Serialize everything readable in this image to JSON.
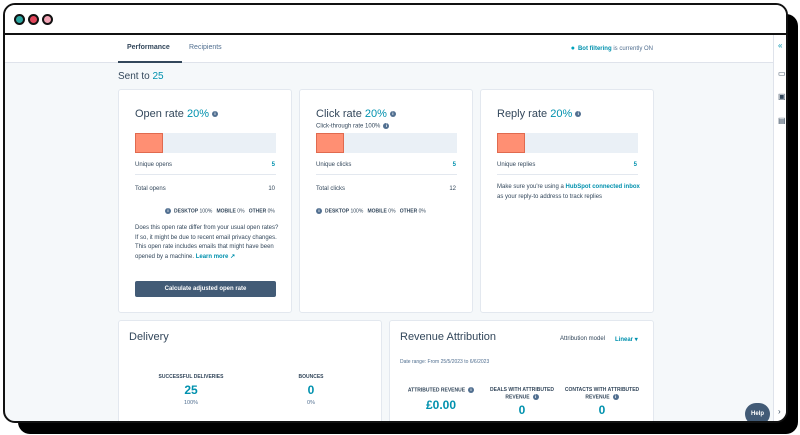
{
  "window": {
    "controls": [
      "close",
      "minimize",
      "maximize"
    ]
  },
  "tabs": [
    {
      "label": "Performance"
    },
    {
      "label": "Recipients"
    }
  ],
  "bot_filtering": {
    "link": "Bot filtering",
    "text": "is currently ON"
  },
  "sent": {
    "label": "Sent to",
    "count": "25"
  },
  "open_rate": {
    "title": "Open rate",
    "pct": "20%",
    "fill_fraction": 0.2,
    "unique_label": "Unique opens",
    "unique_value": "5",
    "total_label": "Total opens",
    "total_value": "10",
    "devices": {
      "desktop_label": "DESKTOP",
      "desktop_value": "100%",
      "mobile_label": "MOBILE",
      "mobile_value": "0%",
      "other_label": "OTHER",
      "other_value": "0%"
    },
    "note": "Does this open rate differ from your usual open rates? If so, it might be due to recent email privacy changes. This open rate includes emails that might have been opened by a machine.",
    "learn_more": "Learn more",
    "button": "Calculate adjusted open rate"
  },
  "click_rate": {
    "title": "Click rate",
    "pct": "20%",
    "fill_fraction": 0.2,
    "click_through": "Click-through rate 100%",
    "unique_label": "Unique clicks",
    "unique_value": "5",
    "total_label": "Total clicks",
    "total_value": "12",
    "devices": {
      "desktop_label": "DESKTOP",
      "desktop_value": "100%",
      "mobile_label": "MOBILE",
      "mobile_value": "0%",
      "other_label": "OTHER",
      "other_value": "0%"
    }
  },
  "reply_rate": {
    "title": "Reply rate",
    "pct": "20%",
    "fill_fraction": 0.2,
    "unique_label": "Unique replies",
    "unique_value": "5",
    "note_pre": "Make sure you're using a",
    "note_link": "HubSpot connected inbox",
    "note_post": "as your reply-to address to track replies"
  },
  "delivery": {
    "title": "Delivery",
    "successful_label": "SUCCESSFUL DELIVERIES",
    "successful_value": "25",
    "successful_pct": "100%",
    "bounces_label": "BOUNCES",
    "bounces_value": "0",
    "bounces_pct": "0%"
  },
  "revenue": {
    "title": "Revenue Attribution",
    "model_label": "Attribution model",
    "model_value": "Linear",
    "date_range": "Date range: From 25/5/2023 to 6/6/2023",
    "attributed_label": "ATTRIBUTED REVENUE",
    "attributed_value": "£0.00",
    "deals_label": "DEALS WITH ATTRIBUTED REVENUE",
    "deals_value": "0",
    "contacts_label": "CONTACTS WITH ATTRIBUTED REVENUE",
    "contacts_value": "0"
  },
  "help": {
    "label": "Help"
  },
  "colors": {
    "accent": "#0091ae",
    "bar_fill": "#ff8f73",
    "button": "#425b76"
  }
}
